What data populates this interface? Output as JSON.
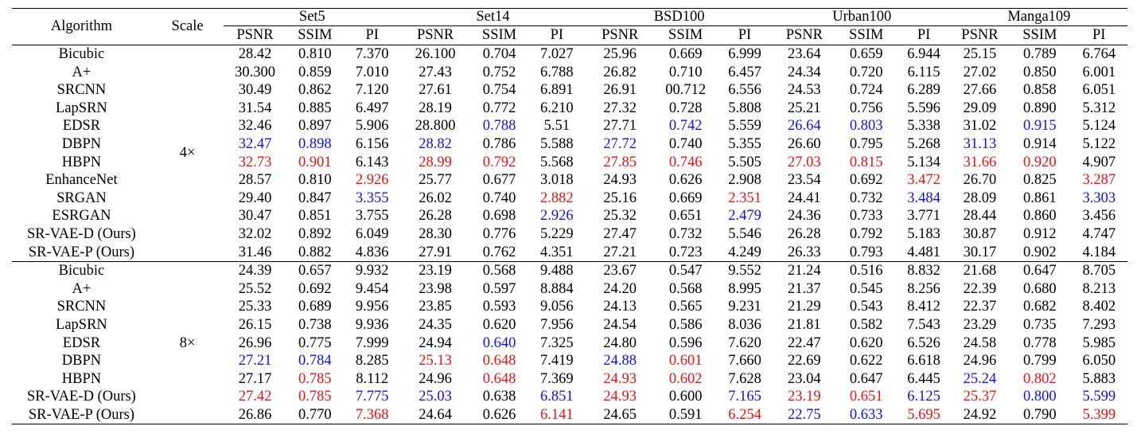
{
  "header": {
    "algorithm": "Algorithm",
    "scale": "Scale",
    "datasets": [
      "Set5",
      "Set14",
      "BSD100",
      "Urban100",
      "Manga109"
    ],
    "metrics": [
      "PSNR",
      "SSIM",
      "PI"
    ]
  },
  "colors": {
    "k": "#000000",
    "r": "#ee1111",
    "b": "#1111ee"
  },
  "groups": [
    {
      "scale": "4×",
      "rows": [
        {
          "name": "Bicubic",
          "vals": [
            "28.42",
            "0.810",
            "7.370",
            "26.100",
            "0.704",
            "7.027",
            "25.96",
            "0.669",
            "6.999",
            "23.64",
            "0.659",
            "6.944",
            "25.15",
            "0.789",
            "6.764"
          ],
          "col": "kkkkkkkkkkkkkkk"
        },
        {
          "name": "A+",
          "vals": [
            "30.300",
            "0.859",
            "7.010",
            "27.43",
            "0.752",
            "6.788",
            "26.82",
            "0.710",
            "6.457",
            "24.34",
            "0.720",
            "6.115",
            "27.02",
            "0.850",
            "6.001"
          ],
          "col": "kkkkkkkkkkkkkkk"
        },
        {
          "name": "SRCNN",
          "vals": [
            "30.49",
            "0.862",
            "7.120",
            "27.61",
            "0.754",
            "6.891",
            "26.91",
            "00.712",
            "6.556",
            "24.53",
            "0.724",
            "6.289",
            "27.66",
            "0.858",
            "6.051"
          ],
          "col": "kkkkkkkkkkkkkkk"
        },
        {
          "name": "LapSRN",
          "vals": [
            "31.54",
            "0.885",
            "6.497",
            "28.19",
            "0.772",
            "6.210",
            "27.32",
            "0.728",
            "5.808",
            "25.21",
            "0.756",
            "5.596",
            "29.09",
            "0.890",
            "5.312"
          ],
          "col": "kkkkkkkkkkkkkkk"
        },
        {
          "name": "EDSR",
          "vals": [
            "32.46",
            "0.897",
            "5.906",
            "28.800",
            "0.788",
            "5.51",
            "27.71",
            "0.742",
            "5.559",
            "26.64",
            "0.803",
            "5.338",
            "31.02",
            "0.915",
            "5.124"
          ],
          "col": "kkkkbkkbkbbkkbk"
        },
        {
          "name": "DBPN",
          "vals": [
            "32.47",
            "0.898",
            "6.156",
            "28.82",
            "0.786",
            "5.588",
            "27.72",
            "0.740",
            "5.355",
            "26.60",
            "0.795",
            "5.268",
            "31.13",
            "0.914",
            "5.122"
          ],
          "col": "bbkbkkbkkkkkbkk"
        },
        {
          "name": "HBPN",
          "vals": [
            "32.73",
            "0.901",
            "6.143",
            "28.99",
            "0.792",
            "5.568",
            "27.85",
            "0.746",
            "5.505",
            "27.03",
            "0.815",
            "5.134",
            "31.66",
            "0.920",
            "4.907"
          ],
          "col": "rrkrrkrrkrrkrrk"
        },
        {
          "name": "EnhanceNet",
          "vals": [
            "28.57",
            "0.810",
            "2.926",
            "25.77",
            "0.677",
            "3.018",
            "24.93",
            "0.626",
            "2.908",
            "23.54",
            "0.692",
            "3.472",
            "26.70",
            "0.825",
            "3.287"
          ],
          "col": "kkrkkkkkkkkrkkr"
        },
        {
          "name": "SRGAN",
          "vals": [
            "29.40",
            "0.847",
            "3.355",
            "26.02",
            "0.740",
            "2.882",
            "25.16",
            "0.669",
            "2.351",
            "24.41",
            "0.732",
            "3.484",
            "28.09",
            "0.861",
            "3.303"
          ],
          "col": "kkbkkrkkrkkbkkb"
        },
        {
          "name": "ESRGAN",
          "vals": [
            "30.47",
            "0.851",
            "3.755",
            "26.28",
            "0.698",
            "2.926",
            "25.32",
            "0.651",
            "2.479",
            "24.36",
            "0.733",
            "3.771",
            "28.44",
            "0.860",
            "3.456"
          ],
          "col": "kkkkkbkkbkkkkkk"
        },
        {
          "name": "SR-VAE-D (Ours)",
          "vals": [
            "32.02",
            "0.892",
            "6.049",
            "28.30",
            "0.776",
            "5.229",
            "27.47",
            "0.732",
            "5.546",
            "26.28",
            "0.792",
            "5.183",
            "30.87",
            "0.912",
            "4.747"
          ],
          "col": "kkkkkkkkkkkkkkk"
        },
        {
          "name": "SR-VAE-P (Ours)",
          "vals": [
            "31.46",
            "0.882",
            "4.836",
            "27.91",
            "0.762",
            "4.351",
            "27.21",
            "0.723",
            "4.249",
            "26.33",
            "0.793",
            "4.481",
            "30.17",
            "0.902",
            "4.184"
          ],
          "col": "kkkkkkkkkkkkkkk"
        }
      ]
    },
    {
      "scale": "8×",
      "rows": [
        {
          "name": "Bicubic",
          "vals": [
            "24.39",
            "0.657",
            "9.932",
            "23.19",
            "0.568",
            "9.488",
            "23.67",
            "0.547",
            "9.552",
            "21.24",
            "0.516",
            "8.832",
            "21.68",
            "0.647",
            "8.705"
          ],
          "col": "kkkkkkkkkkkkkkk"
        },
        {
          "name": "A+",
          "vals": [
            "25.52",
            "0.692",
            "9.454",
            "23.98",
            "0.597",
            "8.884",
            "24.20",
            "0.568",
            "8.995",
            "21.37",
            "0.545",
            "8.256",
            "22.39",
            "0.680",
            "8.213"
          ],
          "col": "kkkkkkkkkkkkkkk"
        },
        {
          "name": "SRCNN",
          "vals": [
            "25.33",
            "0.689",
            "9.956",
            "23.85",
            "0.593",
            "9.056",
            "24.13",
            "0.565",
            "9.231",
            "21.29",
            "0.543",
            "8.412",
            "22.37",
            "0.682",
            "8.402"
          ],
          "col": "kkkkkkkkkkkkkkk"
        },
        {
          "name": "LapSRN",
          "vals": [
            "26.15",
            "0.738",
            "9.936",
            "24.35",
            "0.620",
            "7.956",
            "24.54",
            "0.586",
            "8.036",
            "21.81",
            "0.582",
            "7.543",
            "23.29",
            "0.735",
            "7.293"
          ],
          "col": "kkkkkkkkkkkkkkk"
        },
        {
          "name": "EDSR",
          "vals": [
            "26.96",
            "0.775",
            "7.999",
            "24.94",
            "0.640",
            "7.325",
            "24.80",
            "0.596",
            "7.620",
            "22.47",
            "0.620",
            "6.526",
            "24.58",
            "0.778",
            "5.985"
          ],
          "col": "kkkkbkkkkkkkkkk"
        },
        {
          "name": "DBPN",
          "vals": [
            "27.21",
            "0.784",
            "8.285",
            "25.13",
            "0.648",
            "7.419",
            "24.88",
            "0.601",
            "7.660",
            "22.69",
            "0.622",
            "6.618",
            "24.96",
            "0.799",
            "6.050"
          ],
          "col": "bbkrrkbrkkkkkkk"
        },
        {
          "name": "HBPN",
          "vals": [
            "27.17",
            "0.785",
            "8.112",
            "24.96",
            "0.648",
            "7.369",
            "24.93",
            "0.602",
            "7.628",
            "23.04",
            "0.647",
            "6.445",
            "25.24",
            "0.802",
            "5.883"
          ],
          "col": "krkkrkrrkkkkbrk"
        },
        {
          "name": "SR-VAE-D (Ours)",
          "vals": [
            "27.42",
            "0.785",
            "7.775",
            "25.03",
            "0.638",
            "6.851",
            "24.93",
            "0.600",
            "7.165",
            "23.19",
            "0.651",
            "6.125",
            "25.37",
            "0.800",
            "5.599"
          ],
          "col": "rrbbkbrkbrrbrbb"
        },
        {
          "name": "SR-VAE-P (Ours)",
          "vals": [
            "26.86",
            "0.770",
            "7.368",
            "24.64",
            "0.626",
            "6.141",
            "24.65",
            "0.591",
            "6.254",
            "22.75",
            "0.633",
            "5.695",
            "24.92",
            "0.790",
            "5.399"
          ],
          "col": "kkrkkrkkrbbrkkr"
        }
      ]
    }
  ]
}
